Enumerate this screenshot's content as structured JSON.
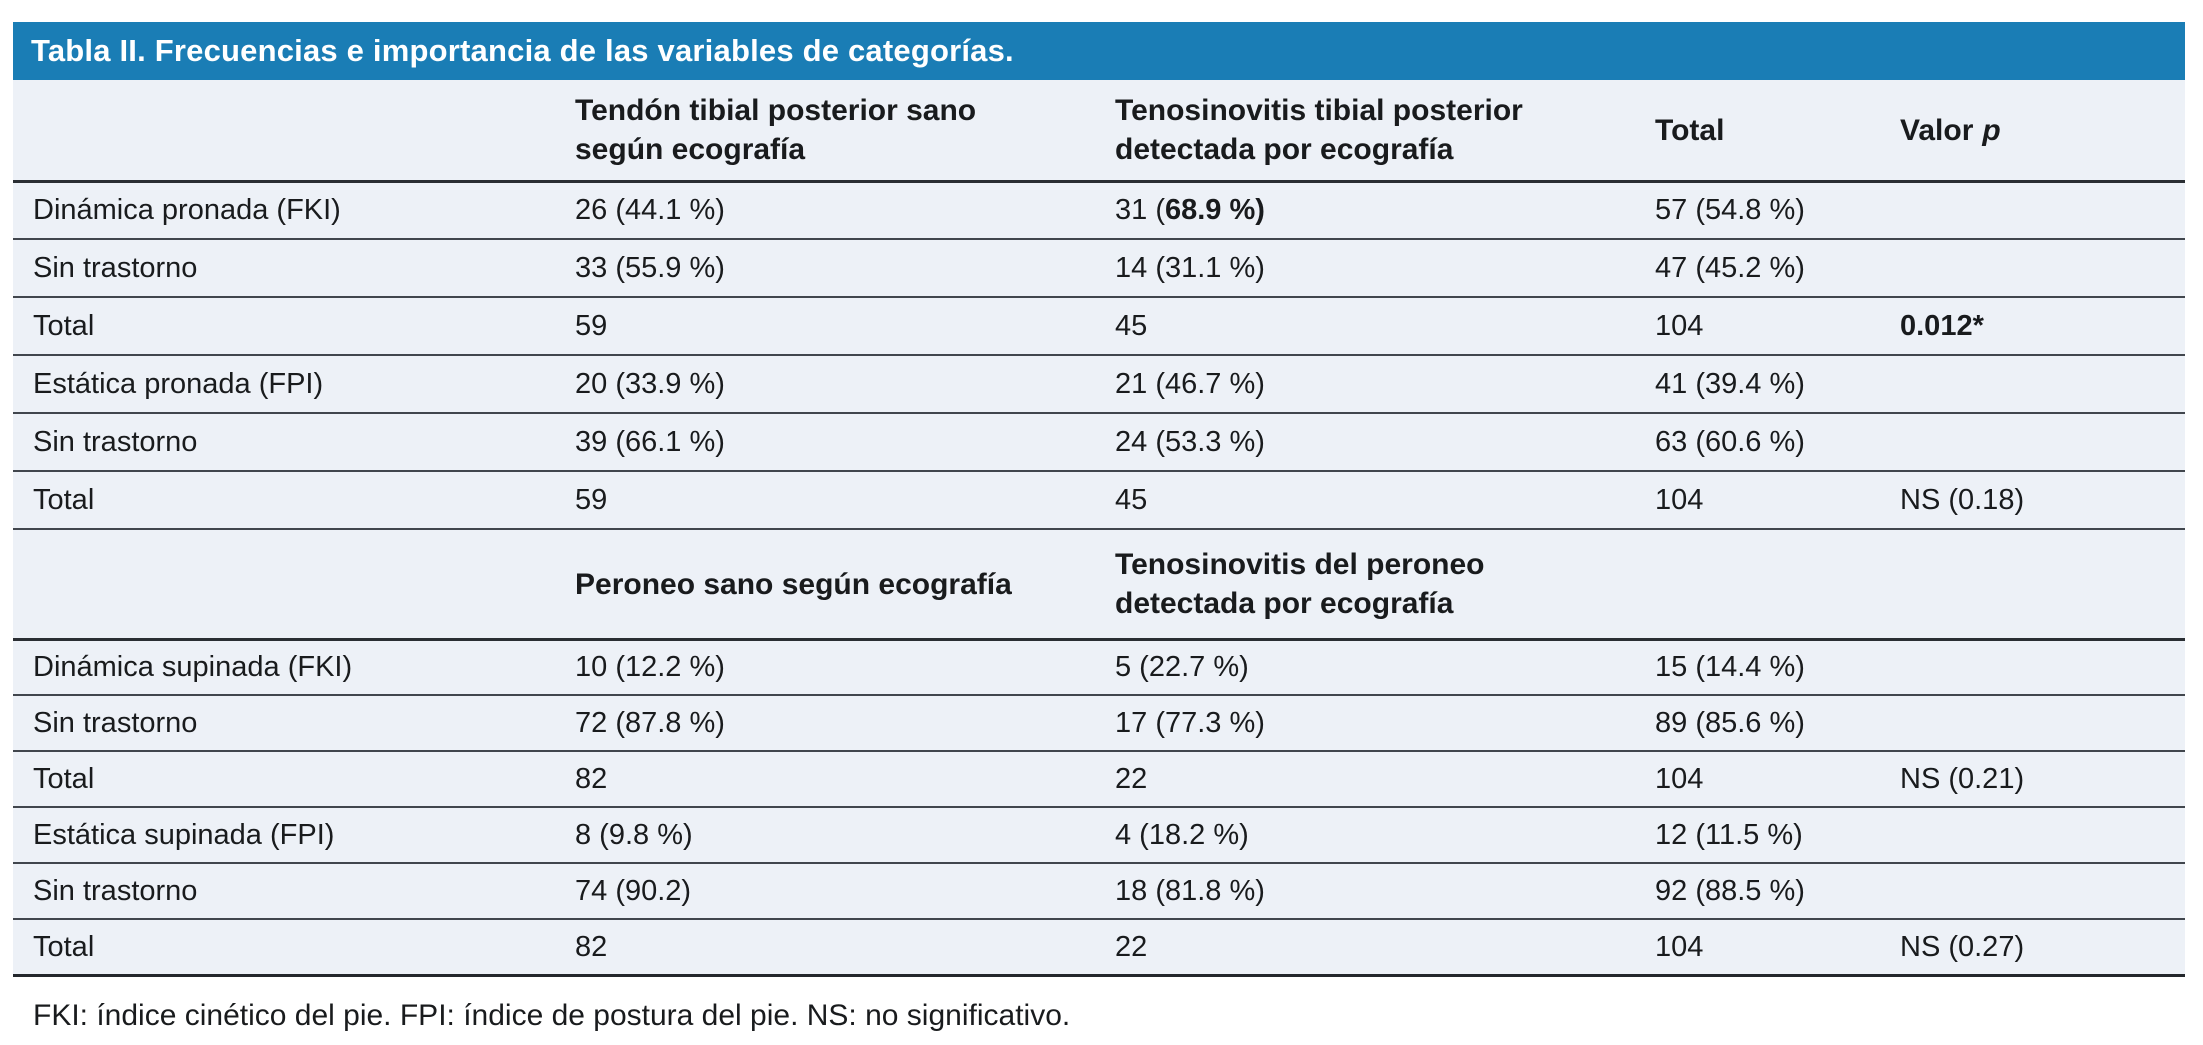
{
  "title": "Tabla II. Frecuencias e importancia de las variables de categorías.",
  "footnote": "FKI: índice cinético del pie. FPI: índice de postura del pie. NS: no significativo.",
  "colors": {
    "title_bar_bg": "#1a7db5",
    "title_text": "#ffffff",
    "body_bg": "#edf1f7",
    "divider": "#41464d",
    "text": "#191b1d"
  },
  "sections": [
    {
      "header": {
        "col2": "Tendón tibial posterior sano\nsegún ecografía",
        "col3": "Tenosinovitis tibial posterior\ndetectada por ecografía",
        "col4": "Total",
        "col5_text": "Valor",
        "col5_var": "p"
      },
      "rows": [
        {
          "label": "Dinámica pronada (FKI)",
          "c2": "26 (44.1 %)",
          "c3_prefix": "31 (",
          "c3_bold": "68.9 %)",
          "c4": "57 (54.8 %)"
        },
        {
          "label": "Sin trastorno",
          "c2": "33 (55.9 %)",
          "c3": "14 (31.1 %)",
          "c4": "47 (45.2 %)"
        },
        {
          "label": "Total",
          "c2": "59",
          "c3": "45",
          "c4": "104",
          "c5_bold": "0.012*"
        },
        {
          "label": "Estática pronada (FPI)",
          "c2": "20 (33.9 %)",
          "c3": "21 (46.7 %)",
          "c4": "41 (39.4 %)"
        },
        {
          "label": "Sin trastorno",
          "c2": "39 (66.1 %)",
          "c3": "24 (53.3 %)",
          "c4": "63 (60.6 %)"
        },
        {
          "label": "Total",
          "c2": "59",
          "c3": "45",
          "c4": "104",
          "c5": "NS (0.18)"
        }
      ]
    },
    {
      "header": {
        "col2": "Peroneo sano según ecografía",
        "col3": "Tenosinovitis del peroneo\ndetectada por ecografía"
      },
      "rows": [
        {
          "label": "Dinámica supinada (FKI)",
          "c2": "10 (12.2 %)",
          "c3": "5 (22.7 %)",
          "c4": "15 (14.4 %)"
        },
        {
          "label": "Sin trastorno",
          "c2": "72 (87.8 %)",
          "c3": "17 (77.3 %)",
          "c4": "89 (85.6 %)"
        },
        {
          "label": "Total",
          "c2": "82",
          "c3": "22",
          "c4": "104",
          "c5": "NS (0.21)"
        },
        {
          "label": "Estática supinada (FPI)",
          "c2": "8 (9.8 %)",
          "c3": "4 (18.2 %)",
          "c4": "12 (11.5 %)"
        },
        {
          "label": "Sin trastorno",
          "c2": "74 (90.2)",
          "c3": "18 (81.8 %)",
          "c4": "92 (88.5 %)"
        },
        {
          "label": "Total",
          "c2": "82",
          "c3": "22",
          "c4": "104",
          "c5": "NS (0.27)"
        }
      ]
    }
  ]
}
